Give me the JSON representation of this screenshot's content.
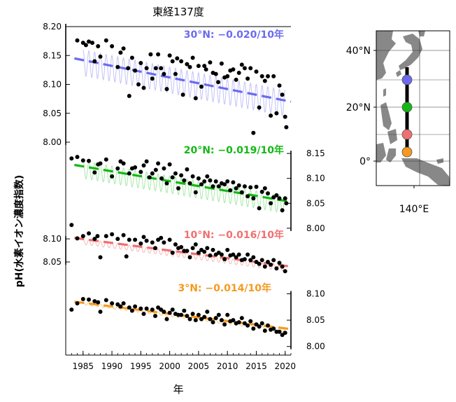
{
  "chart_data": {
    "type": "scatter",
    "title": "東経137度",
    "xlabel": "年",
    "ylabel": "pH(水素イオン濃度指数)",
    "x_ticks": [
      1985,
      1990,
      1995,
      2000,
      2005,
      2010,
      2015,
      2020
    ],
    "xlim": [
      1982,
      2021
    ],
    "panels": [
      {
        "name": "30°N",
        "label": "30°N: −0.020/10年",
        "color": "#6b6bf0",
        "light_color": "#c2c2f7",
        "axis_side": "left",
        "axis_ticks": [
          8.0,
          8.05,
          8.1,
          8.15,
          8.2
        ],
        "axis_tick_labels": [
          "8.00",
          "8.05",
          "8.10",
          "8.15",
          "8.20"
        ],
        "ylim": [
          8.0,
          8.2
        ],
        "trend": {
          "x": [
            1983.5,
            2021
          ],
          "y": [
            8.145,
            8.07
          ]
        },
        "seasonal": {
          "amplitude": 0.045,
          "base": [
            8.16,
            8.09
          ]
        },
        "points": [
          [
            1984,
            8.176
          ],
          [
            1985,
            8.172
          ],
          [
            1985.5,
            8.168
          ],
          [
            1986,
            8.174
          ],
          [
            1986.6,
            8.172
          ],
          [
            1987,
            8.14
          ],
          [
            1987.6,
            8.166
          ],
          [
            1988,
            8.148
          ],
          [
            1989,
            8.176
          ],
          [
            1990,
            8.166
          ],
          [
            1991,
            8.13
          ],
          [
            1991.5,
            8.155
          ],
          [
            1992,
            8.162
          ],
          [
            1992.8,
            8.128
          ],
          [
            1993,
            8.08
          ],
          [
            1993.5,
            8.146
          ],
          [
            1994,
            8.124
          ],
          [
            1994.6,
            8.1
          ],
          [
            1995,
            8.137
          ],
          [
            1995.5,
            8.094
          ],
          [
            1996,
            8.128
          ],
          [
            1996.7,
            8.152
          ],
          [
            1997,
            8.11
          ],
          [
            1997.6,
            8.128
          ],
          [
            1998,
            8.152
          ],
          [
            1998.5,
            8.128
          ],
          [
            1999,
            8.118
          ],
          [
            1999.5,
            8.092
          ],
          [
            2000,
            8.15
          ],
          [
            2000.5,
            8.14
          ],
          [
            2001,
            8.118
          ],
          [
            2001.3,
            8.145
          ],
          [
            2002,
            8.14
          ],
          [
            2002.3,
            8.082
          ],
          [
            2003,
            8.135
          ],
          [
            2003.5,
            8.13
          ],
          [
            2004,
            8.146
          ],
          [
            2004.5,
            8.076
          ],
          [
            2005,
            8.132
          ],
          [
            2005.5,
            8.096
          ],
          [
            2006,
            8.132
          ],
          [
            2006.3,
            8.126
          ],
          [
            2007,
            8.138
          ],
          [
            2007.5,
            8.12
          ],
          [
            2008,
            8.118
          ],
          [
            2008.4,
            8.104
          ],
          [
            2009,
            8.136
          ],
          [
            2009.5,
            8.112
          ],
          [
            2010,
            8.114
          ],
          [
            2010.5,
            8.124
          ],
          [
            2011,
            8.126
          ],
          [
            2011.5,
            8.108
          ],
          [
            2012,
            8.12
          ],
          [
            2012.5,
            8.134
          ],
          [
            2013,
            8.128
          ],
          [
            2013.5,
            8.11
          ],
          [
            2014,
            8.128
          ],
          [
            2014.5,
            8.016
          ],
          [
            2015,
            8.122
          ],
          [
            2015.5,
            8.06
          ],
          [
            2016,
            8.114
          ],
          [
            2016.5,
            8.106
          ],
          [
            2017,
            8.114
          ],
          [
            2017.5,
            8.046
          ],
          [
            2018,
            8.114
          ],
          [
            2018.5,
            8.05
          ],
          [
            2019,
            8.098
          ],
          [
            2019.5,
            8.082
          ],
          [
            2020,
            8.044
          ],
          [
            2020.2,
            8.026
          ]
        ]
      },
      {
        "name": "20°N",
        "label": "20°N: −0.019/10年",
        "color": "#14b814",
        "light_color": "#a6e8a6",
        "axis_side": "right",
        "axis_ticks": [
          8.0,
          8.05,
          8.1,
          8.15
        ],
        "axis_tick_labels": [
          "8.00",
          "8.05",
          "8.10",
          "8.15"
        ],
        "ylim": [
          7.99,
          8.16
        ],
        "trend": {
          "x": [
            1983.5,
            2021
          ],
          "y": [
            8.127,
            8.053
          ]
        },
        "seasonal": {
          "amplitude": 0.035,
          "base": [
            8.135,
            8.065
          ]
        },
        "points": [
          [
            1983,
            8.14
          ],
          [
            1984,
            8.143
          ],
          [
            1985,
            8.136
          ],
          [
            1986,
            8.135
          ],
          [
            1987,
            8.112
          ],
          [
            1987.6,
            8.128
          ],
          [
            1988,
            8.13
          ],
          [
            1989,
            8.138
          ],
          [
            1990,
            8.104
          ],
          [
            1991,
            8.12
          ],
          [
            1991.5,
            8.134
          ],
          [
            1992,
            8.13
          ],
          [
            1993,
            8.11
          ],
          [
            1993.5,
            8.12
          ],
          [
            1994,
            8.122
          ],
          [
            1995,
            8.113
          ],
          [
            1995.5,
            8.126
          ],
          [
            1996,
            8.134
          ],
          [
            1996.5,
            8.102
          ],
          [
            1997,
            8.11
          ],
          [
            1997.6,
            8.117
          ],
          [
            1998,
            8.13
          ],
          [
            1998.6,
            8.1
          ],
          [
            1999,
            8.12
          ],
          [
            1999.5,
            8.09
          ],
          [
            2000,
            8.128
          ],
          [
            2000.5,
            8.102
          ],
          [
            2001,
            8.11
          ],
          [
            2001.5,
            8.08
          ],
          [
            2002,
            8.106
          ],
          [
            2002.5,
            8.096
          ],
          [
            2003,
            8.118
          ],
          [
            2003.5,
            8.09
          ],
          [
            2004,
            8.104
          ],
          [
            2004.5,
            8.072
          ],
          [
            2005,
            8.1
          ],
          [
            2005.5,
            8.088
          ],
          [
            2006,
            8.094
          ],
          [
            2006.5,
            8.104
          ],
          [
            2007,
            8.096
          ],
          [
            2007.5,
            8.084
          ],
          [
            2008,
            8.094
          ],
          [
            2008.5,
            8.084
          ],
          [
            2009,
            8.09
          ],
          [
            2009.5,
            8.088
          ],
          [
            2010,
            8.094
          ],
          [
            2010.5,
            8.076
          ],
          [
            2011,
            8.092
          ],
          [
            2011.5,
            8.08
          ],
          [
            2012,
            8.086
          ],
          [
            2012.5,
            8.072
          ],
          [
            2013,
            8.084
          ],
          [
            2013.5,
            8.064
          ],
          [
            2014,
            8.082
          ],
          [
            2014.5,
            8.06
          ],
          [
            2015,
            8.083
          ],
          [
            2015.5,
            8.04
          ],
          [
            2016,
            8.073
          ],
          [
            2016.5,
            8.08
          ],
          [
            2017,
            8.07
          ],
          [
            2017.5,
            8.05
          ],
          [
            2018,
            8.062
          ],
          [
            2018.5,
            8.066
          ],
          [
            2019,
            8.06
          ],
          [
            2019.5,
            8.036
          ],
          [
            2020,
            8.06
          ],
          [
            2020.2,
            8.05
          ]
        ]
      },
      {
        "name": "10°N",
        "label": "10°N: −0.016/10年",
        "color": "#f07070",
        "light_color": "#f6b8b8",
        "axis_side": "left",
        "axis_ticks": [
          8.05,
          8.1
        ],
        "axis_tick_labels": [
          "8.05",
          "8.10"
        ],
        "ylim": [
          8.0,
          8.135
        ],
        "trend": {
          "x": [
            1983.5,
            2021
          ],
          "y": [
            8.102,
            8.04
          ]
        },
        "seasonal": {
          "amplitude": 0.012,
          "base": [
            8.1,
            8.042
          ]
        },
        "points": [
          [
            1983,
            8.13
          ],
          [
            1984,
            8.101
          ],
          [
            1985,
            8.106
          ],
          [
            1986,
            8.112
          ],
          [
            1987,
            8.1
          ],
          [
            1987.5,
            8.106
          ],
          [
            1988,
            8.06
          ],
          [
            1989,
            8.106
          ],
          [
            1990,
            8.11
          ],
          [
            1991,
            8.1
          ],
          [
            1992,
            8.108
          ],
          [
            1992.5,
            8.062
          ],
          [
            1993,
            8.098
          ],
          [
            1994,
            8.098
          ],
          [
            1995,
            8.09
          ],
          [
            1995.5,
            8.104
          ],
          [
            1996,
            8.096
          ],
          [
            1997,
            8.092
          ],
          [
            1997.5,
            8.08
          ],
          [
            1998,
            8.098
          ],
          [
            1998.5,
            8.102
          ],
          [
            1999,
            8.092
          ],
          [
            2000,
            8.098
          ],
          [
            2000.5,
            8.07
          ],
          [
            2001,
            8.088
          ],
          [
            2001.5,
            8.08
          ],
          [
            2002,
            8.082
          ],
          [
            2002.5,
            8.074
          ],
          [
            2003,
            8.074
          ],
          [
            2003.5,
            8.06
          ],
          [
            2004,
            8.08
          ],
          [
            2004.5,
            8.088
          ],
          [
            2005,
            8.07
          ],
          [
            2005.5,
            8.076
          ],
          [
            2006,
            8.072
          ],
          [
            2006.5,
            8.08
          ],
          [
            2007,
            8.064
          ],
          [
            2007.5,
            8.076
          ],
          [
            2008,
            8.066
          ],
          [
            2008.5,
            8.07
          ],
          [
            2009,
            8.066
          ],
          [
            2009.5,
            8.056
          ],
          [
            2010,
            8.076
          ],
          [
            2010.5,
            8.064
          ],
          [
            2011,
            8.066
          ],
          [
            2011.5,
            8.06
          ],
          [
            2012,
            8.066
          ],
          [
            2012.5,
            8.054
          ],
          [
            2013,
            8.056
          ],
          [
            2013.5,
            8.066
          ],
          [
            2014,
            8.054
          ],
          [
            2014.5,
            8.06
          ],
          [
            2015,
            8.05
          ],
          [
            2015.5,
            8.046
          ],
          [
            2016,
            8.054
          ],
          [
            2016.5,
            8.04
          ],
          [
            2017,
            8.05
          ],
          [
            2017.5,
            8.044
          ],
          [
            2018,
            8.054
          ],
          [
            2018.5,
            8.036
          ],
          [
            2019,
            8.048
          ],
          [
            2019.5,
            8.04
          ],
          [
            2020,
            8.03
          ]
        ]
      },
      {
        "name": "3°N",
        "label": "3°N: −0.014/10年",
        "color": "#f59a1e",
        "light_color": "#f8cc8c",
        "axis_side": "right",
        "axis_ticks": [
          8.0,
          8.05,
          8.1
        ],
        "axis_tick_labels": [
          "8.00",
          "8.05",
          "8.10"
        ],
        "ylim": [
          7.997,
          8.11
        ],
        "trend": {
          "x": [
            1983.5,
            2021
          ],
          "y": [
            8.085,
            8.033
          ]
        },
        "seasonal": {
          "amplitude": 0.006,
          "base": [
            8.085,
            8.033
          ]
        },
        "points": [
          [
            1983,
            8.07
          ],
          [
            1984,
            8.082
          ],
          [
            1985,
            8.09
          ],
          [
            1986,
            8.089
          ],
          [
            1987,
            8.086
          ],
          [
            1987.6,
            8.084
          ],
          [
            1988,
            8.066
          ],
          [
            1989,
            8.088
          ],
          [
            1990,
            8.082
          ],
          [
            1991,
            8.08
          ],
          [
            1991.5,
            8.076
          ],
          [
            1992,
            8.082
          ],
          [
            1993,
            8.074
          ],
          [
            1993.5,
            8.068
          ],
          [
            1994,
            8.076
          ],
          [
            1995,
            8.072
          ],
          [
            1995.5,
            8.062
          ],
          [
            1996,
            8.072
          ],
          [
            1997,
            8.07
          ],
          [
            1997.5,
            8.058
          ],
          [
            1998,
            8.074
          ],
          [
            1998.5,
            8.07
          ],
          [
            1999,
            8.066
          ],
          [
            1999.5,
            8.052
          ],
          [
            2000,
            8.064
          ],
          [
            2000.5,
            8.07
          ],
          [
            2001,
            8.062
          ],
          [
            2001.5,
            8.06
          ],
          [
            2002,
            8.06
          ],
          [
            2002.5,
            8.068
          ],
          [
            2003,
            8.058
          ],
          [
            2003.5,
            8.052
          ],
          [
            2004,
            8.062
          ],
          [
            2004.5,
            8.05
          ],
          [
            2005,
            8.06
          ],
          [
            2005.5,
            8.052
          ],
          [
            2006,
            8.056
          ],
          [
            2006.5,
            8.066
          ],
          [
            2007,
            8.052
          ],
          [
            2007.5,
            8.046
          ],
          [
            2008,
            8.054
          ],
          [
            2008.5,
            8.06
          ],
          [
            2009,
            8.05
          ],
          [
            2009.5,
            8.042
          ],
          [
            2010,
            8.06
          ],
          [
            2010.5,
            8.048
          ],
          [
            2011,
            8.05
          ],
          [
            2011.5,
            8.044
          ],
          [
            2012,
            8.046
          ],
          [
            2012.5,
            8.054
          ],
          [
            2013,
            8.044
          ],
          [
            2013.5,
            8.04
          ],
          [
            2014,
            8.048
          ],
          [
            2014.5,
            8.034
          ],
          [
            2015,
            8.042
          ],
          [
            2015.5,
            8.038
          ],
          [
            2016,
            8.044
          ],
          [
            2016.5,
            8.03
          ],
          [
            2017,
            8.04
          ],
          [
            2017.5,
            8.032
          ],
          [
            2018,
            8.034
          ],
          [
            2018.5,
            8.028
          ],
          [
            2019,
            8.028
          ],
          [
            2019.5,
            8.022
          ],
          [
            2020,
            8.026
          ]
        ]
      }
    ]
  },
  "map": {
    "lat_labels": [
      "40°N",
      "20°N",
      "0°"
    ],
    "lon_label": "140°E",
    "stations": [
      {
        "name": "30°N",
        "color": "#6b6bf0"
      },
      {
        "name": "20°N",
        "color": "#14b814"
      },
      {
        "name": "10°N",
        "color": "#f07070"
      },
      {
        "name": "3°N",
        "color": "#f59a1e"
      }
    ]
  }
}
